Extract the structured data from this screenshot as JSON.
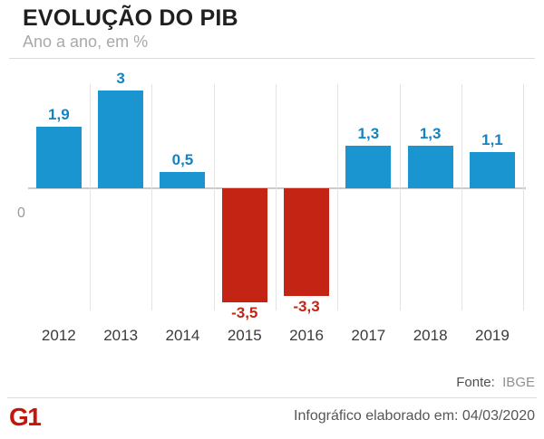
{
  "header": {
    "title": "EVOLUÇÃO DO PIB",
    "subtitle": "Ano a ano, em %"
  },
  "chart_data": {
    "type": "bar",
    "title": "EVOLUÇÃO DO PIB",
    "subtitle": "Ano a ano, em %",
    "unit": "%",
    "categories": [
      "2012",
      "2013",
      "2014",
      "2015",
      "2016",
      "2017",
      "2018",
      "2019"
    ],
    "values": [
      1.9,
      3,
      0.5,
      -3.5,
      -3.3,
      1.3,
      1.3,
      1.1
    ],
    "value_labels": [
      "1,9",
      "3",
      "0,5",
      "-3,5",
      "-3,3",
      "1,3",
      "1,3",
      "1,1"
    ],
    "zero_label": "0",
    "ylim": [
      -4.2,
      3.3
    ],
    "grid": "vertical-separators-between-columns",
    "legend": "none",
    "positive_color": "#1b95d0",
    "negative_color": "#c32413",
    "positive_label_color": "#1283c5",
    "negative_label_color": "#c32413"
  },
  "footer": {
    "source_label": "Fonte:",
    "source_value": "IBGE",
    "logo_text": "G1",
    "credit": "Infográfico elaborado em: 04/03/2020"
  }
}
